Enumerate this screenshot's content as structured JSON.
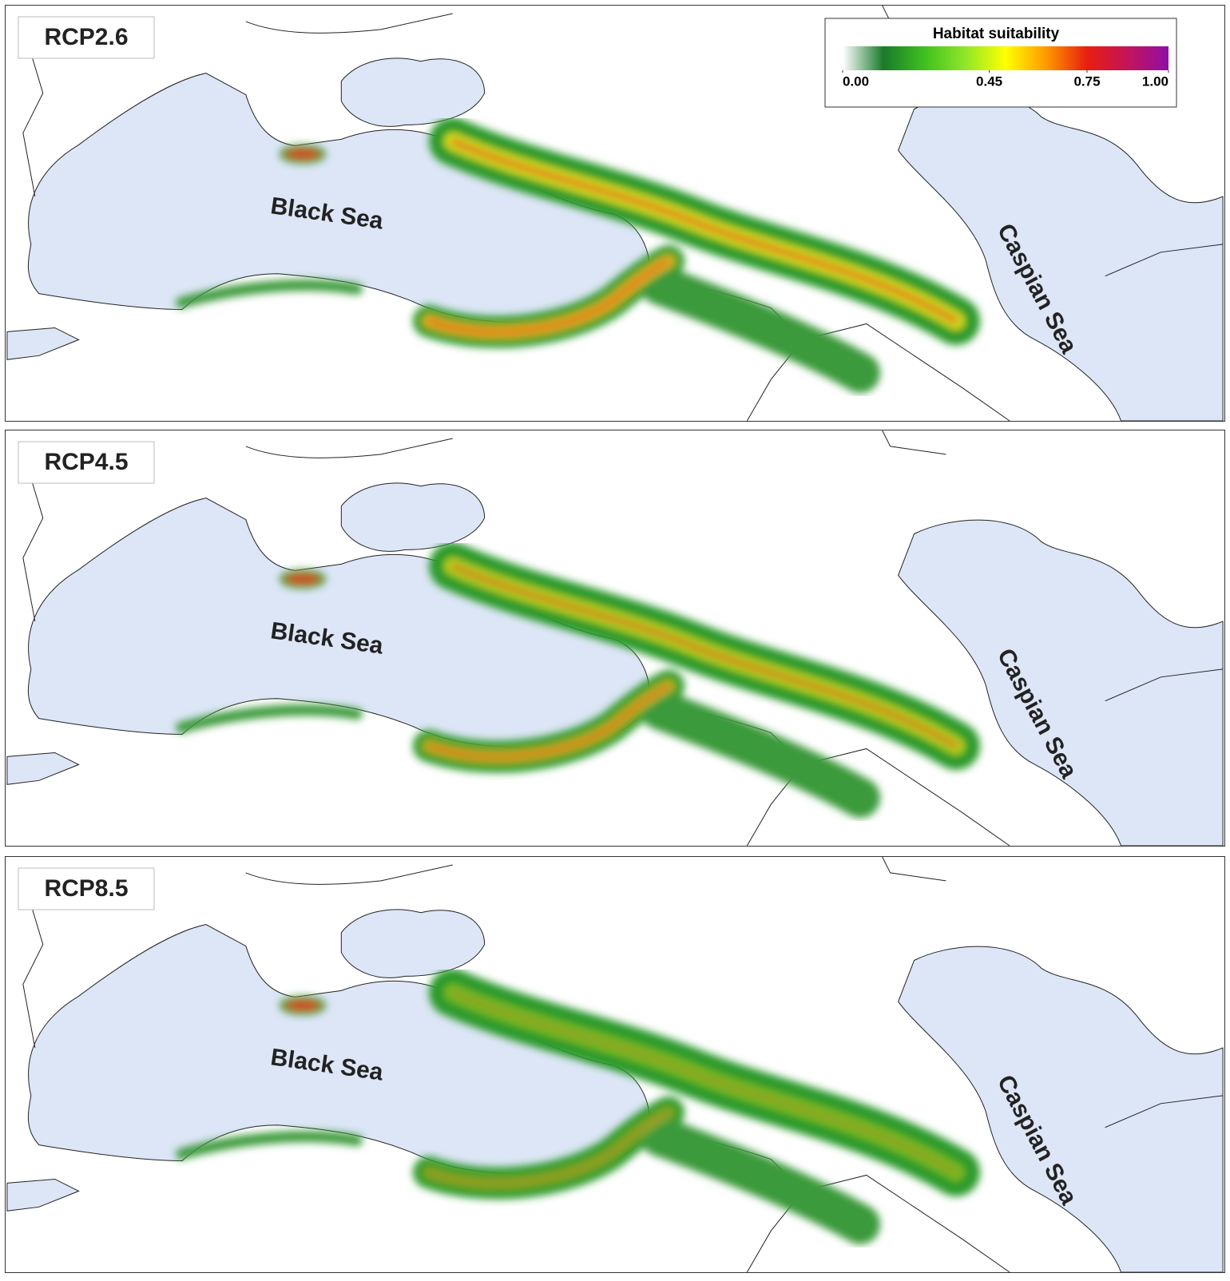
{
  "legend": {
    "title": "Habitat suitability",
    "colors": [
      "#ffffff",
      "#1a7a2a",
      "#3fbf1f",
      "#8fe62a",
      "#ffff00",
      "#ff9900",
      "#e81e10",
      "#c3145a",
      "#8f0fa8"
    ],
    "ticks": [
      {
        "value": 0,
        "label": "0.00"
      },
      {
        "value": 0.45,
        "label": "0.45"
      },
      {
        "value": 0.75,
        "label": "0.75"
      },
      {
        "value": 1,
        "label": "1.00"
      }
    ]
  },
  "panels": [
    {
      "label": "RCP2.6",
      "seas": [
        "Black Sea",
        "Caspian Sea"
      ]
    },
    {
      "label": "RCP4.5",
      "seas": [
        "Black Sea",
        "Caspian Sea"
      ]
    },
    {
      "label": "RCP8.5",
      "seas": [
        "Black Sea",
        "Caspian Sea"
      ]
    }
  ]
}
